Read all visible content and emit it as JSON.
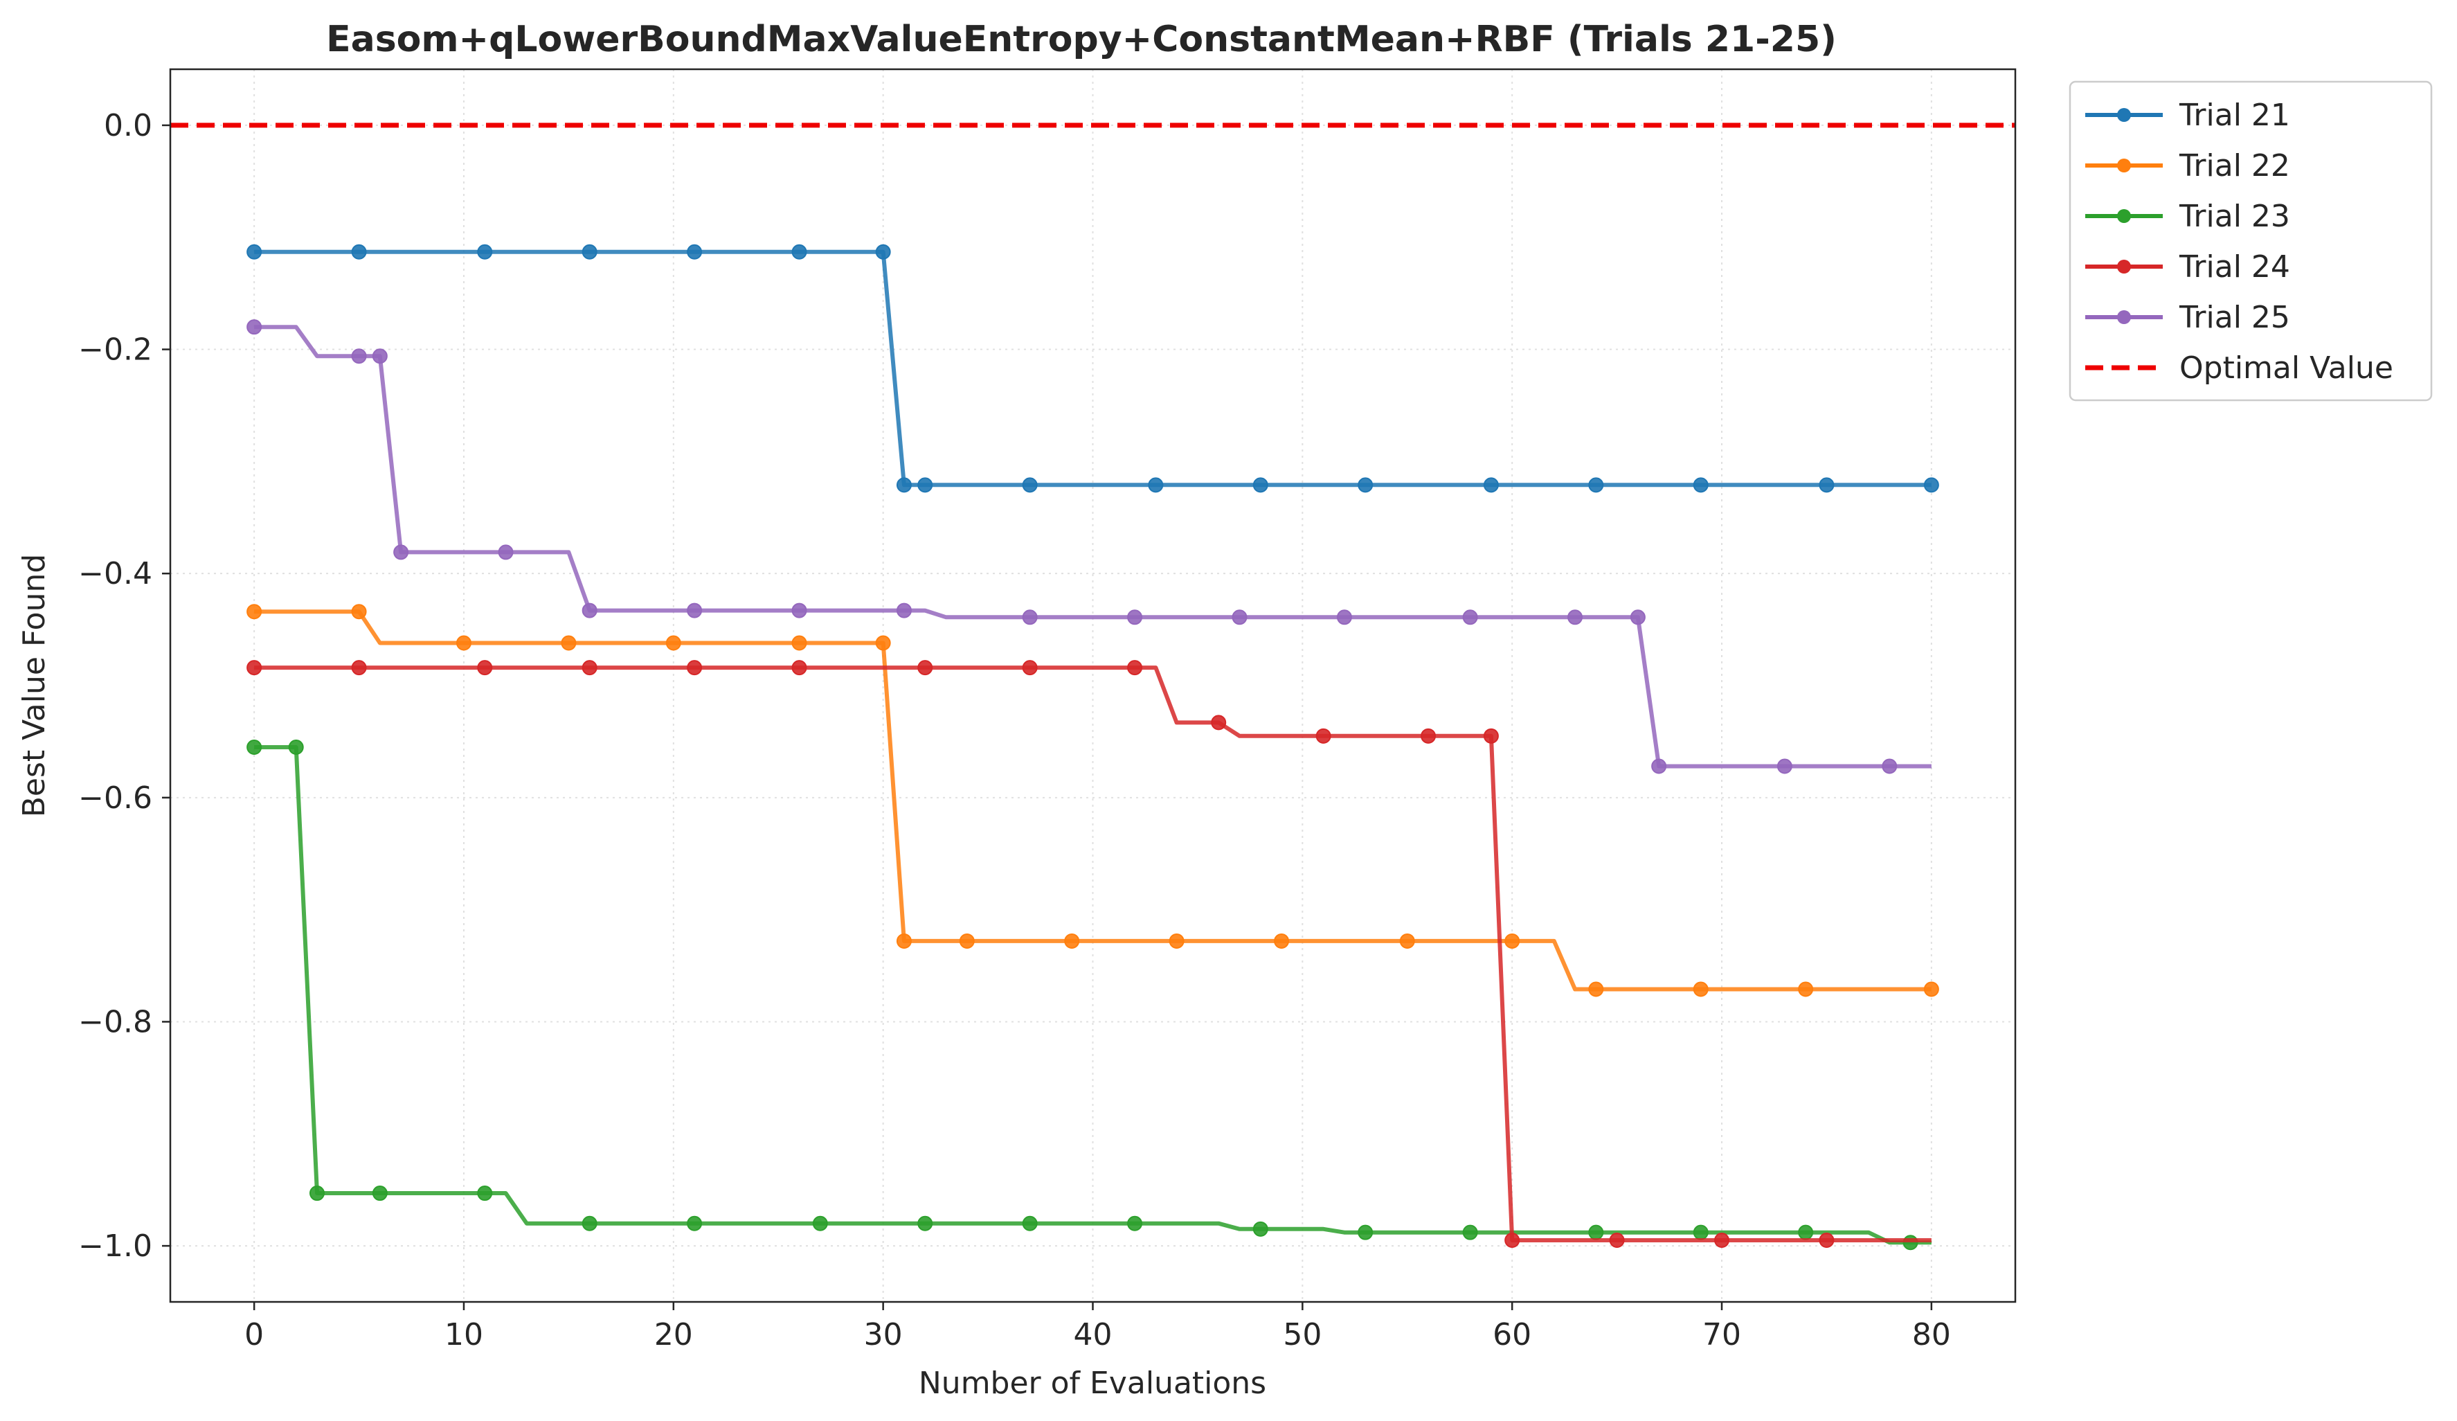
{
  "chart_data": {
    "type": "line",
    "title": "Easom+qLowerBoundMaxValueEntropy+ConstantMean+RBF (Trials 21-25)",
    "xlabel": "Number of Evaluations",
    "ylabel": "Best Value Found",
    "xlim": [
      -4,
      84
    ],
    "ylim": [
      -1.05,
      0.05
    ],
    "xticks": [
      0,
      10,
      20,
      30,
      40,
      50,
      60,
      70,
      80
    ],
    "yticks": [
      0.0,
      -0.2,
      -0.4,
      -0.6,
      -0.8,
      -1.0
    ],
    "xtick_labels": [
      "0",
      "10",
      "20",
      "30",
      "40",
      "50",
      "60",
      "70",
      "80"
    ],
    "ytick_labels": [
      "0.0",
      "−0.2",
      "−0.4",
      "−0.6",
      "−0.8",
      "−1.0"
    ],
    "grid": true,
    "legend_position": "outside-top-right",
    "series": [
      {
        "name": "Trial 21",
        "color": "#1f77b4",
        "points": [
          [
            0,
            -0.113
          ],
          [
            30,
            -0.113
          ],
          [
            31,
            -0.321
          ],
          [
            80,
            -0.321
          ]
        ],
        "markers": [
          [
            0,
            -0.113
          ],
          [
            5,
            -0.113
          ],
          [
            11,
            -0.113
          ],
          [
            16,
            -0.113
          ],
          [
            21,
            -0.113
          ],
          [
            26,
            -0.113
          ],
          [
            30,
            -0.113
          ],
          [
            31,
            -0.321
          ],
          [
            32,
            -0.321
          ],
          [
            37,
            -0.321
          ],
          [
            43,
            -0.321
          ],
          [
            48,
            -0.321
          ],
          [
            53,
            -0.321
          ],
          [
            59,
            -0.321
          ],
          [
            64,
            -0.321
          ],
          [
            69,
            -0.321
          ],
          [
            75,
            -0.321
          ],
          [
            80,
            -0.321
          ]
        ]
      },
      {
        "name": "Trial 22",
        "color": "#ff7f0e",
        "points": [
          [
            0,
            -0.434
          ],
          [
            5,
            -0.434
          ],
          [
            6,
            -0.462
          ],
          [
            30,
            -0.462
          ],
          [
            31,
            -0.728
          ],
          [
            62,
            -0.728
          ],
          [
            63,
            -0.771
          ],
          [
            80,
            -0.771
          ]
        ],
        "markers": [
          [
            0,
            -0.434
          ],
          [
            5,
            -0.434
          ],
          [
            10,
            -0.462
          ],
          [
            15,
            -0.462
          ],
          [
            20,
            -0.462
          ],
          [
            26,
            -0.462
          ],
          [
            30,
            -0.462
          ],
          [
            31,
            -0.728
          ],
          [
            34,
            -0.728
          ],
          [
            39,
            -0.728
          ],
          [
            44,
            -0.728
          ],
          [
            49,
            -0.728
          ],
          [
            55,
            -0.728
          ],
          [
            60,
            -0.728
          ],
          [
            64,
            -0.771
          ],
          [
            69,
            -0.771
          ],
          [
            74,
            -0.771
          ],
          [
            80,
            -0.771
          ]
        ]
      },
      {
        "name": "Trial 23",
        "color": "#2ca02c",
        "points": [
          [
            0,
            -0.555
          ],
          [
            2,
            -0.555
          ],
          [
            3,
            -0.953
          ],
          [
            12,
            -0.953
          ],
          [
            13,
            -0.98
          ],
          [
            46,
            -0.98
          ],
          [
            47,
            -0.985
          ],
          [
            51,
            -0.985
          ],
          [
            52,
            -0.988
          ],
          [
            77,
            -0.988
          ],
          [
            78,
            -0.997
          ],
          [
            80,
            -0.997
          ]
        ],
        "markers": [
          [
            0,
            -0.555
          ],
          [
            2,
            -0.555
          ],
          [
            3,
            -0.953
          ],
          [
            6,
            -0.953
          ],
          [
            11,
            -0.953
          ],
          [
            16,
            -0.98
          ],
          [
            21,
            -0.98
          ],
          [
            27,
            -0.98
          ],
          [
            32,
            -0.98
          ],
          [
            37,
            -0.98
          ],
          [
            42,
            -0.98
          ],
          [
            48,
            -0.985
          ],
          [
            53,
            -0.988
          ],
          [
            58,
            -0.988
          ],
          [
            64,
            -0.988
          ],
          [
            69,
            -0.988
          ],
          [
            74,
            -0.988
          ],
          [
            79,
            -0.997
          ]
        ]
      },
      {
        "name": "Trial 24",
        "color": "#d62728",
        "points": [
          [
            0,
            -0.484
          ],
          [
            43,
            -0.484
          ],
          [
            44,
            -0.533
          ],
          [
            46,
            -0.533
          ],
          [
            47,
            -0.545
          ],
          [
            59,
            -0.545
          ],
          [
            60,
            -0.995
          ],
          [
            80,
            -0.995
          ]
        ],
        "markers": [
          [
            0,
            -0.484
          ],
          [
            5,
            -0.484
          ],
          [
            11,
            -0.484
          ],
          [
            16,
            -0.484
          ],
          [
            21,
            -0.484
          ],
          [
            26,
            -0.484
          ],
          [
            32,
            -0.484
          ],
          [
            37,
            -0.484
          ],
          [
            42,
            -0.484
          ],
          [
            46,
            -0.533
          ],
          [
            51,
            -0.545
          ],
          [
            56,
            -0.545
          ],
          [
            59,
            -0.545
          ],
          [
            60,
            -0.995
          ],
          [
            65,
            -0.995
          ],
          [
            70,
            -0.995
          ],
          [
            75,
            -0.995
          ]
        ]
      },
      {
        "name": "Trial 25",
        "color": "#9467bd",
        "points": [
          [
            0,
            -0.18
          ],
          [
            2,
            -0.18
          ],
          [
            3,
            -0.206
          ],
          [
            6,
            -0.206
          ],
          [
            7,
            -0.381
          ],
          [
            15,
            -0.381
          ],
          [
            16,
            -0.433
          ],
          [
            32,
            -0.433
          ],
          [
            33,
            -0.439
          ],
          [
            66,
            -0.439
          ],
          [
            67,
            -0.572
          ],
          [
            80,
            -0.572
          ]
        ],
        "markers": [
          [
            0,
            -0.18
          ],
          [
            5,
            -0.206
          ],
          [
            6,
            -0.206
          ],
          [
            7,
            -0.381
          ],
          [
            12,
            -0.381
          ],
          [
            16,
            -0.433
          ],
          [
            21,
            -0.433
          ],
          [
            26,
            -0.433
          ],
          [
            31,
            -0.433
          ],
          [
            37,
            -0.439
          ],
          [
            42,
            -0.439
          ],
          [
            47,
            -0.439
          ],
          [
            52,
            -0.439
          ],
          [
            58,
            -0.439
          ],
          [
            63,
            -0.439
          ],
          [
            66,
            -0.439
          ],
          [
            67,
            -0.572
          ],
          [
            73,
            -0.572
          ],
          [
            78,
            -0.572
          ]
        ]
      }
    ],
    "reference_line": {
      "name": "Optimal Value",
      "y": 0.0,
      "color": "#ee0000"
    }
  }
}
